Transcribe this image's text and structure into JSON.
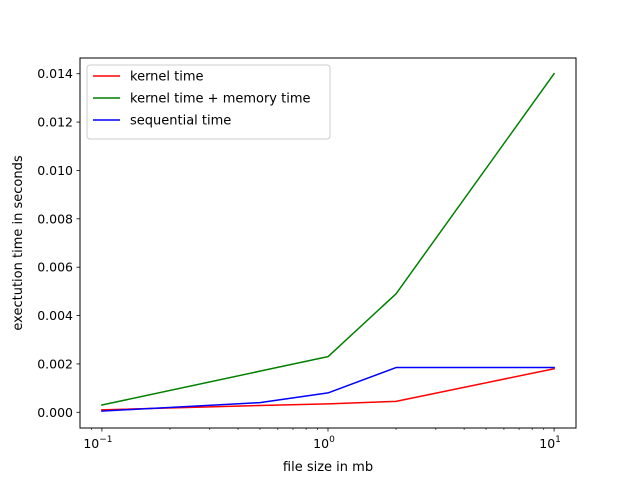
{
  "chart_data": {
    "type": "line",
    "title": "",
    "xlabel": "file size in mb",
    "ylabel": "exectution time in seconds",
    "xscale": "log",
    "xlim": [
      0.08,
      12.5
    ],
    "ylim": [
      -0.00065,
      0.01465
    ],
    "x_ticks": [
      {
        "value": 0.1,
        "base": "10",
        "exp": "−1"
      },
      {
        "value": 1,
        "base": "10",
        "exp": "0"
      },
      {
        "value": 10,
        "base": "10",
        "exp": "1"
      }
    ],
    "y_ticks": [
      {
        "value": 0.0,
        "label": "0.000"
      },
      {
        "value": 0.002,
        "label": "0.002"
      },
      {
        "value": 0.004,
        "label": "0.004"
      },
      {
        "value": 0.006,
        "label": "0.006"
      },
      {
        "value": 0.008,
        "label": "0.008"
      },
      {
        "value": 0.01,
        "label": "0.010"
      },
      {
        "value": 0.012,
        "label": "0.012"
      },
      {
        "value": 0.014,
        "label": "0.014"
      }
    ],
    "grid": false,
    "legend_position": "top-left",
    "series": [
      {
        "name": "kernel time",
        "color": "#ff0000",
        "x": [
          0.1,
          0.5,
          1,
          2,
          10
        ],
        "y": [
          0.0001,
          0.00028,
          0.00035,
          0.00045,
          0.0018
        ]
      },
      {
        "name": "kernel time + memory time",
        "color": "#008000",
        "x": [
          0.1,
          0.5,
          1,
          2,
          10
        ],
        "y": [
          0.0003,
          0.0017,
          0.0023,
          0.0049,
          0.014
        ]
      },
      {
        "name": "sequential time",
        "color": "#0000ff",
        "x": [
          0.1,
          0.5,
          1,
          2,
          10
        ],
        "y": [
          5e-05,
          0.0004,
          0.0008,
          0.00185,
          0.00185
        ]
      }
    ]
  }
}
